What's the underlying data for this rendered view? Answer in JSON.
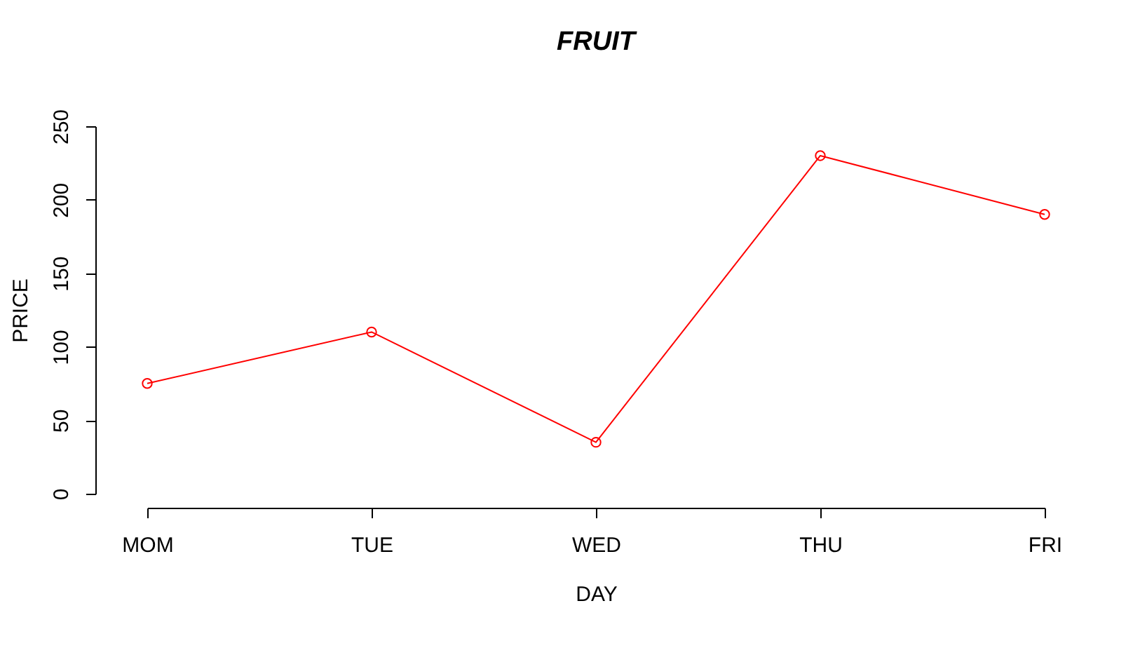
{
  "chart_data": {
    "type": "line",
    "title": "FRUIT",
    "xlabel": "DAY",
    "ylabel": "PRICE",
    "categories": [
      "MOM",
      "TUE",
      "WED",
      "THU",
      "FRI"
    ],
    "series": [
      {
        "color": "#ff0000",
        "values": [
          75,
          110,
          35,
          230,
          190
        ]
      }
    ],
    "ylim": [
      0,
      250
    ],
    "yticks": [
      0,
      50,
      100,
      150,
      200,
      250
    ],
    "grid": false,
    "marker": "circle"
  }
}
